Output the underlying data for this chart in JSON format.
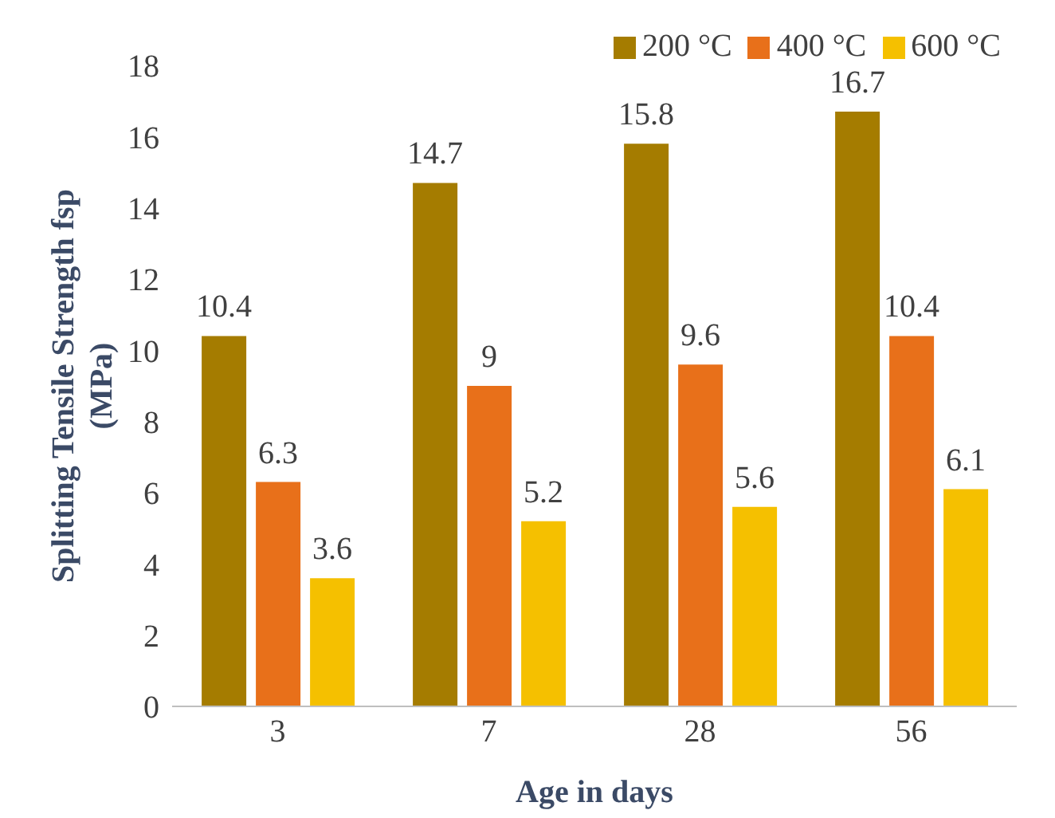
{
  "chart_data": {
    "type": "bar",
    "xlabel": "Age in days",
    "ylabel": "Splitting Tensile Strength fsp (MPa)",
    "categories": [
      "3",
      "7",
      "28",
      "56"
    ],
    "series": [
      {
        "name": "200 °C",
        "color": "#a57c00",
        "values": [
          10.4,
          14.7,
          15.8,
          16.7
        ]
      },
      {
        "name": "400 °C",
        "color": "#e8701a",
        "values": [
          6.3,
          9,
          9.6,
          10.4
        ]
      },
      {
        "name": "600 °C",
        "color": "#f5c000",
        "values": [
          3.6,
          5.2,
          5.6,
          6.1
        ]
      }
    ],
    "ylim": [
      0,
      18
    ],
    "yticks": [
      0,
      2,
      4,
      6,
      8,
      10,
      12,
      14,
      16,
      18
    ],
    "grid": false,
    "legend": "top right",
    "data_labels": true
  }
}
